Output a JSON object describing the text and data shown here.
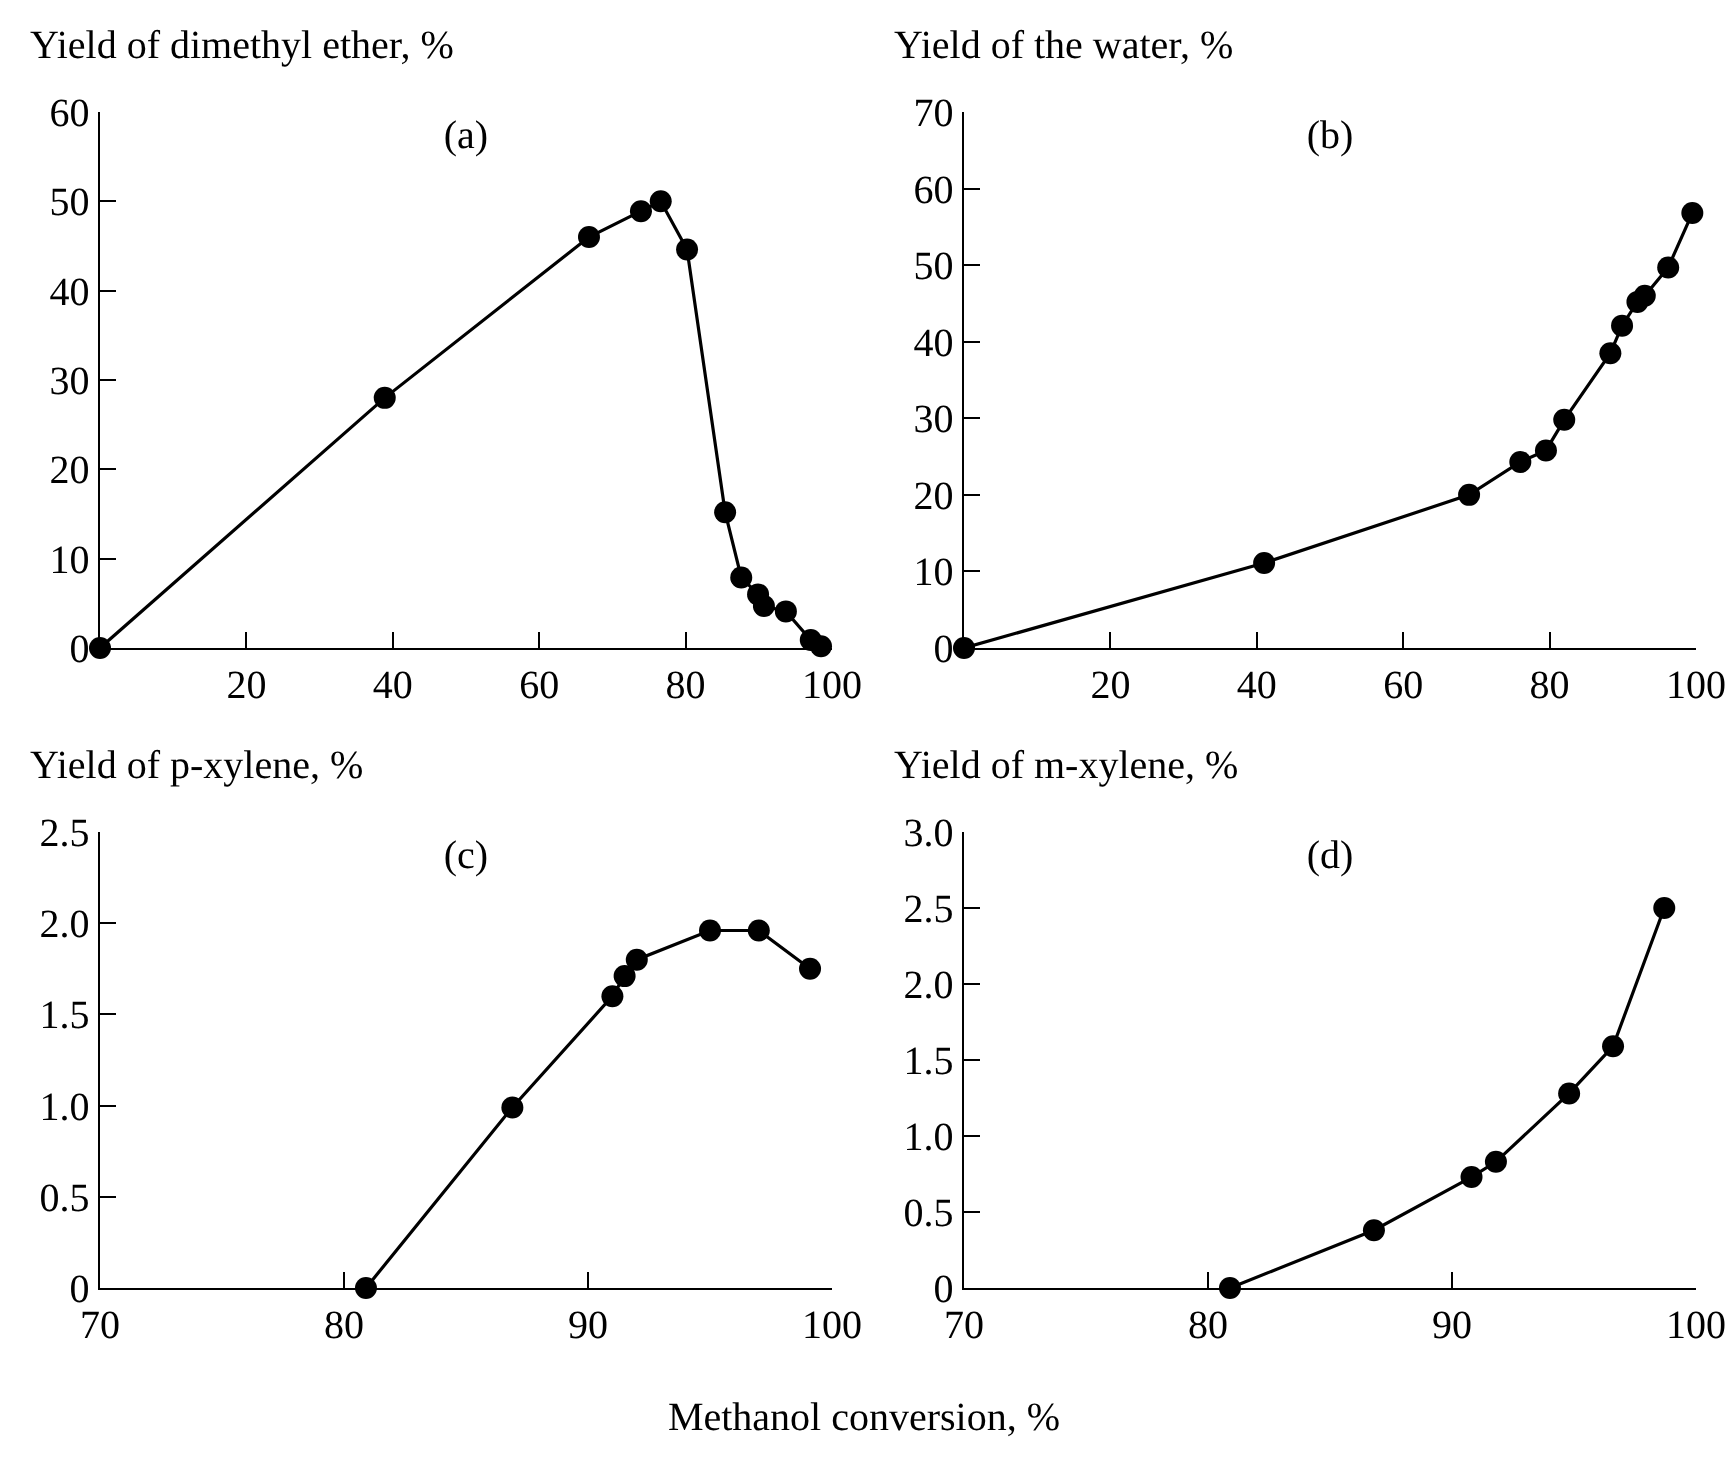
{
  "chart_data": [
    {
      "type": "line",
      "title": "(a)",
      "ylabel": "Yield of dimethyl ether, %",
      "color": "#000000",
      "marker": "circle",
      "line_style": "solid",
      "x": [
        0,
        38.9,
        66.8,
        73.9,
        76.6,
        80.2,
        85.4,
        87.6,
        89.9,
        90.7,
        93.7,
        97.1,
        98.5
      ],
      "values": [
        0,
        28,
        46,
        48.9,
        50,
        44.6,
        15.2,
        7.9,
        6,
        4.7,
        4.1,
        0.9,
        0.2
      ],
      "xlim": [
        0,
        100
      ],
      "xticks": [
        20,
        40,
        60,
        80,
        100
      ],
      "ylim": [
        0,
        60
      ],
      "yticks": [
        0,
        10,
        20,
        30,
        40,
        50,
        60
      ]
    },
    {
      "type": "line",
      "title": "(b)",
      "ylabel": "Yield of the water, %",
      "color": "#000000",
      "marker": "circle",
      "line_style": "solid",
      "x": [
        0,
        41,
        69,
        76,
        79.5,
        82,
        88.3,
        89.9,
        92,
        93,
        96.2,
        99.5
      ],
      "values": [
        0,
        11.1,
        20,
        24.3,
        25.8,
        29.8,
        38.5,
        42.1,
        45.2,
        46,
        49.7,
        56.8
      ],
      "xlim": [
        0,
        100
      ],
      "xticks": [
        20,
        40,
        60,
        80,
        100
      ],
      "ylim": [
        0,
        70
      ],
      "yticks": [
        0,
        10,
        20,
        30,
        40,
        50,
        60,
        70
      ]
    },
    {
      "type": "line",
      "title": "(c)",
      "ylabel": "Yield of p-xylene, %",
      "xlabel": "Methanol conversion, %",
      "color": "#000000",
      "marker": "circle",
      "line_style": "solid",
      "x": [
        80.9,
        86.9,
        91,
        91.5,
        92,
        95,
        97,
        99.1
      ],
      "values": [
        0,
        0.99,
        1.6,
        1.71,
        1.8,
        1.96,
        1.96,
        1.75
      ],
      "xlim": [
        70,
        100
      ],
      "xticks": [
        70,
        80,
        90,
        100
      ],
      "ylim": [
        0,
        2.5
      ],
      "yticks": [
        0,
        0.5,
        {
          "value": 1,
          "label": "1.0"
        },
        1.5,
        {
          "value": 2,
          "label": "2.0"
        },
        2.5
      ]
    },
    {
      "type": "line",
      "title": "(d)",
      "ylabel": "Yield of m-xylene, %",
      "color": "#000000",
      "marker": "circle",
      "line_style": "solid",
      "x": [
        80.9,
        86.8,
        90.8,
        91.8,
        94.8,
        96.6,
        98.7
      ],
      "values": [
        0,
        0.38,
        0.73,
        0.83,
        1.28,
        1.59,
        2.5
      ],
      "xlim": [
        70,
        100
      ],
      "xticks": [
        70,
        80,
        90,
        100
      ],
      "ylim": [
        0,
        3
      ],
      "yticks": [
        0,
        0.5,
        {
          "value": 1,
          "label": "1.0"
        },
        1.5,
        {
          "value": 2,
          "label": "2.0"
        },
        2.5,
        {
          "value": 3,
          "label": "3.0"
        }
      ]
    }
  ]
}
